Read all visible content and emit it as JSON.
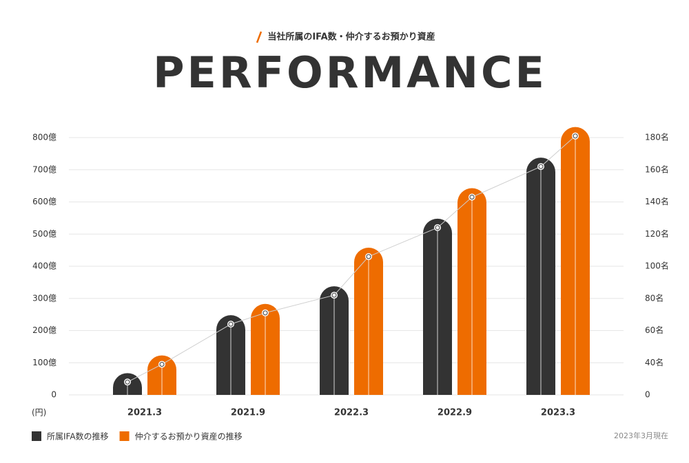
{
  "chart_data": {
    "type": "bar",
    "subtitle": "当社所属のIFA数・仲介するお預かり資産",
    "title": "PERFORMANCE",
    "y_unit_label": "(円)",
    "categories": [
      "2021.3",
      "2021.9",
      "2022.3",
      "2022.9",
      "2023.3"
    ],
    "series": [
      {
        "name": "所属IFA数の推移",
        "color": "#333333",
        "axis": "y2",
        "values": [
          28,
          64,
          82,
          124,
          162
        ]
      },
      {
        "name": "仲介するお預かり資産の推移",
        "color": "#ee6c00",
        "values": [
          95,
          255,
          430,
          615,
          805
        ]
      }
    ],
    "ylim": [
      0,
      800
    ],
    "yticks": [
      0,
      {
        "value": 100,
        "label": "100億"
      },
      {
        "value": 200,
        "label": "200億"
      },
      {
        "value": 300,
        "label": "300億"
      },
      {
        "value": 400,
        "label": "400億"
      },
      {
        "value": 500,
        "label": "500億"
      },
      {
        "value": 600,
        "label": "600億"
      },
      {
        "value": 700,
        "label": "700億"
      },
      {
        "value": 800,
        "label": "800億"
      }
    ],
    "y2lim": [
      20,
      180
    ],
    "y2_zero_label": "0",
    "y2ticks": [
      {
        "value": 40,
        "label": "40名"
      },
      {
        "value": 60,
        "label": "60名"
      },
      {
        "value": 80,
        "label": "80名"
      },
      {
        "value": 100,
        "label": "100名"
      },
      {
        "value": 120,
        "label": "120名"
      },
      {
        "value": 140,
        "label": "140名"
      },
      {
        "value": 160,
        "label": "160名"
      },
      {
        "value": 180,
        "label": "180名"
      }
    ],
    "grid": true,
    "legend": "bottom-left",
    "note": "2023年3月現在"
  }
}
